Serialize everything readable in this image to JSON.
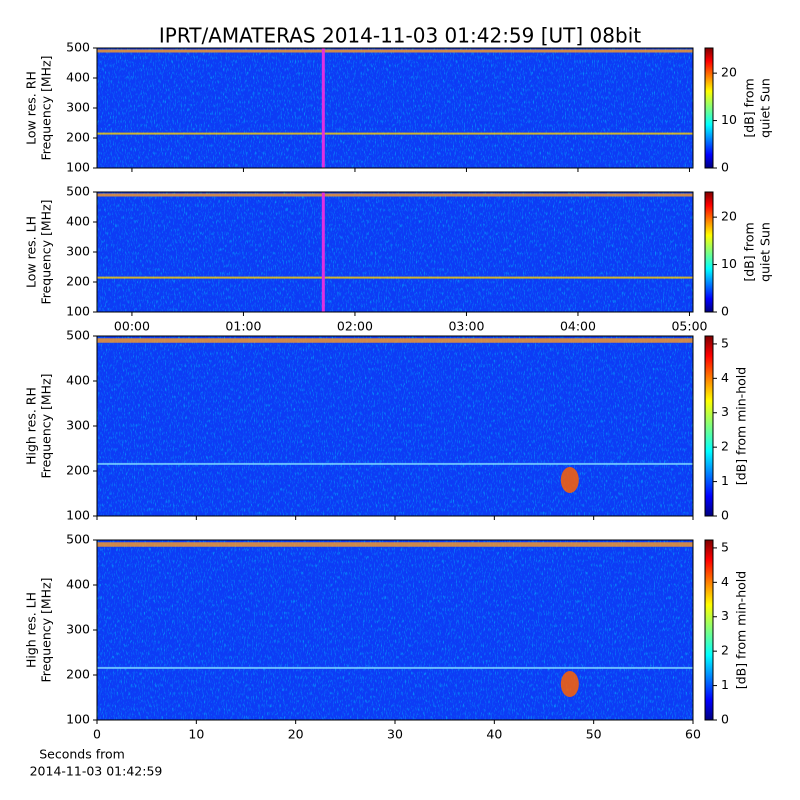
{
  "title": "IPRT/AMATERAS 2014-11-03 01:42:59 [UT]   08bit",
  "chart_data": [
    {
      "type": "heatmap",
      "ylabel": [
        "Low res. RH",
        "Frequency [MHz]"
      ],
      "ylim": [
        100,
        500
      ],
      "yticks": [
        100,
        200,
        300,
        400,
        500
      ],
      "xlim": [
        -18.8,
        301.9
      ],
      "xticks": [
        0,
        60,
        120,
        180,
        240,
        300
      ],
      "cursor_x": 102.98,
      "colormap": "jet",
      "clim": [
        0,
        25.3
      ],
      "cticks": [
        0,
        10,
        20
      ],
      "clabel": [
        "[dB] from",
        "quiet Sun"
      ]
    },
    {
      "type": "heatmap",
      "ylabel": [
        "Low res. LH",
        "Frequency [MHz]"
      ],
      "ylim": [
        100,
        500
      ],
      "yticks": [
        100,
        200,
        300,
        400,
        500
      ],
      "xlim": [
        -18.8,
        301.9
      ],
      "xticks": [
        {
          "value": 0,
          "label": "00:00"
        },
        {
          "value": 60,
          "label": "01:00"
        },
        {
          "value": 120,
          "label": "02:00"
        },
        {
          "value": 180,
          "label": "03:00"
        },
        {
          "value": 240,
          "label": "04:00"
        },
        {
          "value": 300,
          "label": "05:00"
        }
      ],
      "cursor_x": 102.98,
      "colormap": "jet",
      "clim": [
        0,
        25.3
      ],
      "cticks": [
        0,
        10,
        20
      ],
      "clabel": [
        "[dB] from",
        "quiet Sun"
      ]
    },
    {
      "type": "heatmap",
      "ylabel": [
        "High res. RH",
        "Frequency [MHz]"
      ],
      "ylim": [
        100,
        500
      ],
      "yticks": [
        100,
        200,
        300,
        400,
        500
      ],
      "xlim": [
        0,
        60
      ],
      "xticks": [
        0,
        10,
        20,
        30,
        40,
        50,
        60
      ],
      "colormap": "jet",
      "clim": [
        0,
        5.23
      ],
      "cticks": [
        0,
        1,
        2,
        3,
        4,
        5
      ],
      "clabel": [
        "[dB] from min-hold"
      ]
    },
    {
      "type": "heatmap",
      "ylabel": [
        "High res. LH",
        "Frequency [MHz]"
      ],
      "ylim": [
        100,
        500
      ],
      "yticks": [
        100,
        200,
        300,
        400,
        500
      ],
      "xlim": [
        0,
        60
      ],
      "xticks": [
        0,
        10,
        20,
        30,
        40,
        50,
        60
      ],
      "xticklabels": true,
      "xlabel": [
        "Seconds from",
        "2014-11-03 01:42:59"
      ],
      "colormap": "jet",
      "clim": [
        0,
        5.23
      ],
      "cticks": [
        0,
        1,
        2,
        3,
        4,
        5
      ],
      "clabel": [
        "[dB] from min-hold"
      ]
    }
  ]
}
